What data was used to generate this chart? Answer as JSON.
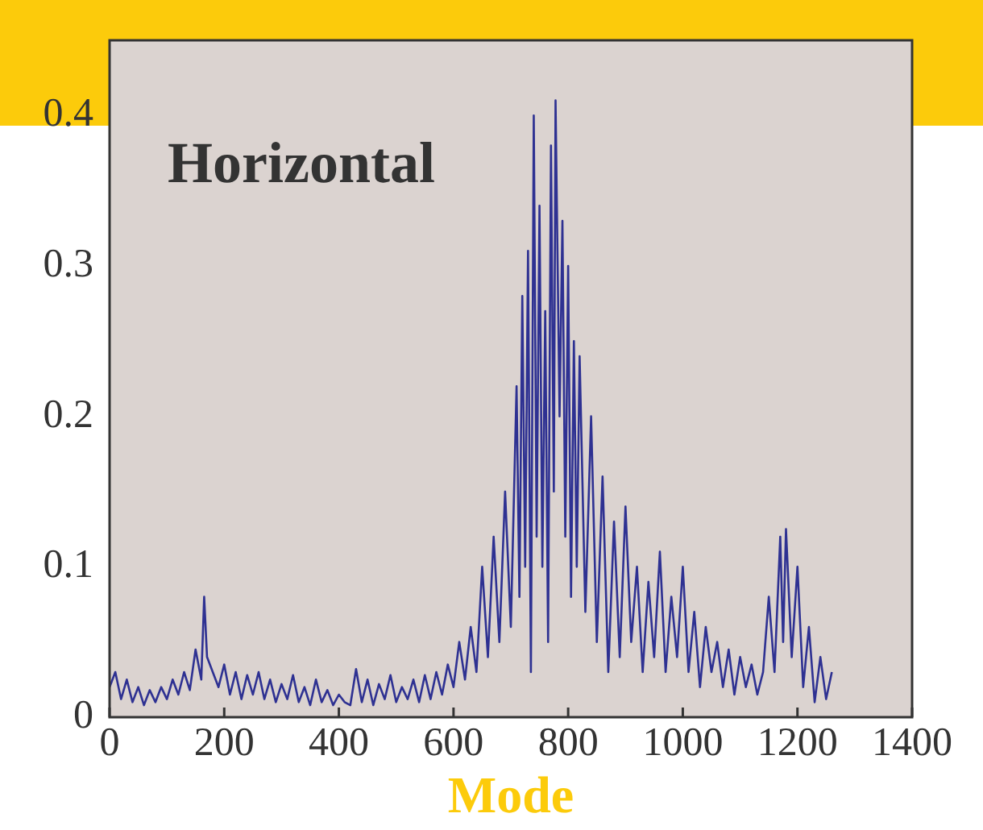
{
  "chart_data": {
    "type": "line",
    "xlabel": "Mode",
    "annotations": [
      "Horizontal"
    ],
    "color": "#2e3192",
    "grid": false,
    "legend": false,
    "marker": "none",
    "line_style": "solid",
    "xlim": [
      0,
      1400
    ],
    "xticks": [
      0,
      200,
      400,
      600,
      800,
      1000,
      1200,
      1400
    ],
    "ylim": [
      0,
      0.45
    ],
    "yticks": [
      0,
      0.1,
      0.2,
      0.3,
      0.4
    ],
    "x": [
      0,
      10,
      20,
      30,
      40,
      50,
      60,
      70,
      80,
      90,
      100,
      110,
      120,
      130,
      140,
      150,
      160,
      165,
      170,
      180,
      190,
      200,
      210,
      220,
      230,
      240,
      250,
      260,
      270,
      280,
      290,
      300,
      310,
      320,
      330,
      340,
      350,
      360,
      370,
      380,
      390,
      400,
      410,
      420,
      430,
      440,
      450,
      460,
      470,
      480,
      490,
      500,
      510,
      520,
      530,
      540,
      550,
      560,
      570,
      580,
      590,
      600,
      610,
      620,
      630,
      640,
      650,
      660,
      670,
      680,
      690,
      700,
      710,
      715,
      720,
      725,
      730,
      735,
      740,
      745,
      750,
      755,
      760,
      765,
      770,
      775,
      778,
      785,
      790,
      795,
      800,
      805,
      810,
      815,
      820,
      830,
      840,
      850,
      860,
      870,
      880,
      890,
      900,
      910,
      920,
      930,
      940,
      950,
      960,
      970,
      980,
      990,
      1000,
      1010,
      1020,
      1030,
      1040,
      1050,
      1060,
      1070,
      1080,
      1090,
      1100,
      1110,
      1120,
      1130,
      1140,
      1150,
      1160,
      1170,
      1175,
      1180,
      1190,
      1200,
      1210,
      1220,
      1230,
      1240,
      1250,
      1260
    ],
    "values": [
      0.02,
      0.03,
      0.012,
      0.025,
      0.01,
      0.02,
      0.008,
      0.018,
      0.01,
      0.02,
      0.012,
      0.025,
      0.015,
      0.03,
      0.018,
      0.045,
      0.025,
      0.08,
      0.04,
      0.03,
      0.02,
      0.035,
      0.015,
      0.03,
      0.012,
      0.028,
      0.015,
      0.03,
      0.012,
      0.025,
      0.01,
      0.022,
      0.012,
      0.028,
      0.01,
      0.02,
      0.008,
      0.025,
      0.01,
      0.018,
      0.008,
      0.015,
      0.01,
      0.008,
      0.032,
      0.01,
      0.025,
      0.008,
      0.022,
      0.012,
      0.028,
      0.01,
      0.02,
      0.012,
      0.025,
      0.01,
      0.028,
      0.012,
      0.03,
      0.015,
      0.035,
      0.02,
      0.05,
      0.025,
      0.06,
      0.03,
      0.1,
      0.04,
      0.12,
      0.05,
      0.15,
      0.06,
      0.22,
      0.08,
      0.28,
      0.1,
      0.31,
      0.03,
      0.4,
      0.12,
      0.34,
      0.1,
      0.27,
      0.05,
      0.38,
      0.15,
      0.41,
      0.2,
      0.33,
      0.12,
      0.3,
      0.08,
      0.25,
      0.1,
      0.24,
      0.07,
      0.2,
      0.05,
      0.16,
      0.03,
      0.13,
      0.04,
      0.14,
      0.05,
      0.1,
      0.03,
      0.09,
      0.04,
      0.11,
      0.03,
      0.08,
      0.04,
      0.1,
      0.03,
      0.07,
      0.02,
      0.06,
      0.03,
      0.05,
      0.02,
      0.045,
      0.015,
      0.04,
      0.02,
      0.035,
      0.015,
      0.03,
      0.08,
      0.03,
      0.12,
      0.05,
      0.125,
      0.04,
      0.1,
      0.02,
      0.06,
      0.01,
      0.04,
      0.012,
      0.03
    ]
  }
}
